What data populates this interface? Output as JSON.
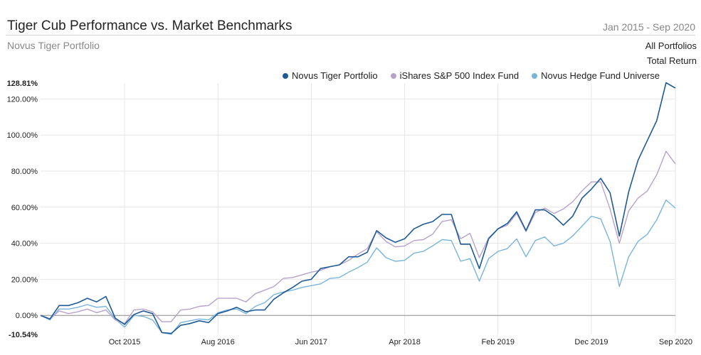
{
  "header": {
    "title": "Tiger Cub Performance vs. Market Benchmarks",
    "subtitle": "Novus Tiger Portfolio",
    "date_range": "Jan 2015 - Sep 2020",
    "portfolio_scope": "All Portfolios",
    "metric": "Total Return"
  },
  "colors": {
    "tiger": "#1f5a96",
    "sp500": "#b6a3cc",
    "hedge": "#79b4dc",
    "grid": "#e6e6e6",
    "zero_line": "#888888"
  },
  "chart_data": {
    "type": "line",
    "title": "Tiger Cub Performance vs. Market Benchmarks",
    "subtitle": "Novus Tiger Portfolio",
    "xlabel": "",
    "ylabel": "",
    "ylim": [
      -10.54,
      128.81
    ],
    "y_ticks": [
      0,
      20,
      40,
      60,
      80,
      100,
      120
    ],
    "y_tick_labels": [
      "0.00%",
      "20.00%",
      "40.00%",
      "60.00%",
      "80.00%",
      "100.00%",
      "120.00%"
    ],
    "y_min_label": "-10.54%",
    "y_max_label": "128.81%",
    "x_tick_labels": [
      "Oct 2015",
      "Aug 2016",
      "Jun 2017",
      "Apr 2018",
      "Feb 2019",
      "Dec 2019",
      "Sep 2020"
    ],
    "x_tick_indices": [
      9,
      19,
      29,
      39,
      49,
      59,
      68
    ],
    "grid": true,
    "legend_position": "top-right",
    "series": [
      {
        "name": "Novus Tiger Portfolio",
        "color": "#1f5a96",
        "values": [
          0,
          -2,
          5.5,
          5.5,
          7,
          9.5,
          7.5,
          10.5,
          -1.5,
          -5,
          0.5,
          2.5,
          1,
          -9.5,
          -10,
          -5.5,
          -4.5,
          -3,
          -4,
          1,
          2.5,
          4.5,
          2,
          3,
          3,
          9,
          12.5,
          15.5,
          19,
          20,
          26,
          27,
          28,
          32.5,
          32.5,
          35,
          47,
          43,
          40.5,
          42.5,
          48,
          50.5,
          52,
          56,
          56,
          39.5,
          39.5,
          26,
          42.5,
          48,
          51,
          57.5,
          47,
          58.5,
          58.5,
          55,
          50,
          55,
          65,
          70,
          76,
          68,
          44,
          68.5,
          86,
          97,
          108,
          129,
          126
        ]
      },
      {
        "name": "iShares S&P 500 Index Fund",
        "color": "#b6a3cc",
        "values": [
          0,
          -2,
          2.5,
          1,
          2,
          3.5,
          1.5,
          3,
          -2.5,
          -4.5,
          3,
          3.5,
          2,
          -3.5,
          -3.5,
          3,
          3.5,
          5,
          5.5,
          9.5,
          9.5,
          9.5,
          7.5,
          12,
          14,
          16,
          20.5,
          21,
          22.5,
          24,
          25,
          27,
          28,
          30.5,
          34,
          37,
          46.5,
          41,
          38,
          38.5,
          41.5,
          42,
          45,
          52,
          53,
          42.5,
          45.5,
          32,
          43,
          48,
          50,
          56.5,
          46.5,
          57,
          59.5,
          56.5,
          59,
          63,
          69,
          74,
          74,
          59,
          40,
          58,
          65,
          69,
          78,
          91,
          84
        ]
      },
      {
        "name": "Novus Hedge Fund Universe",
        "color": "#79b4dc",
        "values": [
          0,
          -2.5,
          3.5,
          3.5,
          4.5,
          6,
          4.5,
          5,
          -2,
          -6.5,
          0,
          -0.5,
          -2.5,
          -9.5,
          -10.5,
          -4,
          -3,
          -2,
          -2.5,
          1.5,
          3,
          3.5,
          1,
          5,
          7,
          11.5,
          13,
          14,
          15.5,
          16.5,
          17.5,
          20.5,
          21,
          24,
          26.5,
          29.5,
          37.5,
          32,
          30,
          30.5,
          34.5,
          35.5,
          38.5,
          42,
          41.5,
          30,
          31.5,
          19,
          31.5,
          35.5,
          37,
          42.5,
          32.5,
          41.5,
          43.5,
          38.5,
          40,
          44,
          49.5,
          55,
          53.5,
          41,
          16,
          32.5,
          41,
          45,
          53,
          64,
          59.5
        ]
      }
    ]
  }
}
